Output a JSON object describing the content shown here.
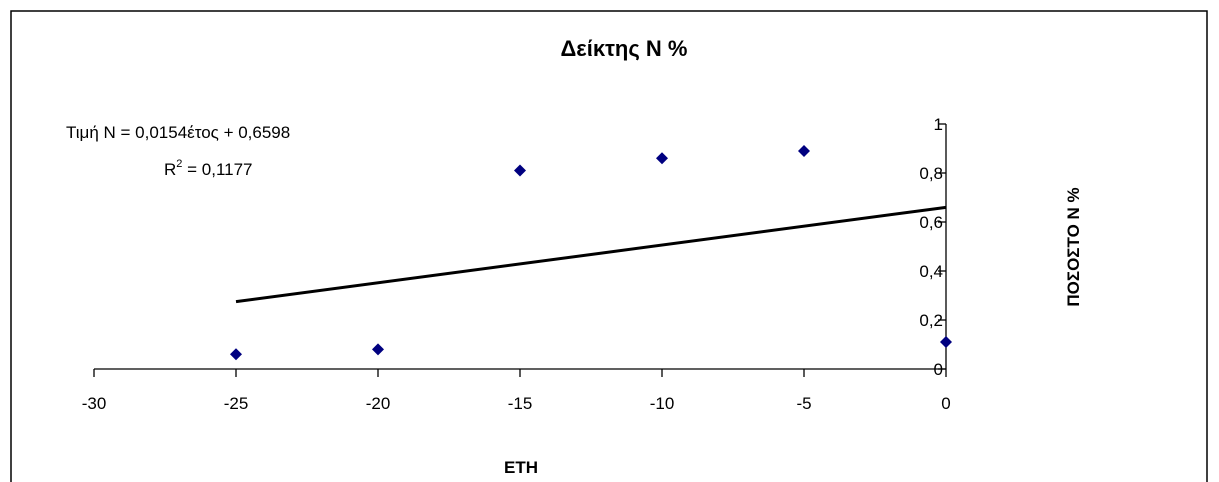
{
  "chart_data": {
    "type": "scatter",
    "title": "Δείκτης N %",
    "xlabel": "ΕΤΗ",
    "ylabel": "ΠΟΣΟΣΤΟ N %",
    "xlim": [
      -30,
      0
    ],
    "ylim": [
      0,
      1
    ],
    "x_ticks": [
      -30,
      -25,
      -20,
      -15,
      -10,
      -5,
      0
    ],
    "x_tick_labels": [
      "-30",
      "-25",
      "-20",
      "-15",
      "-10",
      "-5",
      "0"
    ],
    "y_ticks": [
      0,
      0.2,
      0.4,
      0.6,
      0.8,
      1
    ],
    "y_tick_labels": [
      "0",
      "0,2",
      "0,4",
      "0,6",
      "0,8",
      "1"
    ],
    "grid": false,
    "legend": "none",
    "series": [
      {
        "marker": "diamond",
        "color": "#000080",
        "x": [
          -25,
          -20,
          -15,
          -10,
          -5,
          0
        ],
        "y": [
          0.06,
          0.08,
          0.81,
          0.86,
          0.89,
          0.11
        ]
      }
    ],
    "trendline": {
      "type": "linear",
      "slope": 0.0154,
      "intercept": 0.6598,
      "x_range": [
        -25,
        0
      ],
      "color": "#000000",
      "equation_label": "Τιμή N = 0,0154έτος + 0,6598",
      "r2_label_prefix": "R",
      "r2_label_sup": "2",
      "r2_label_suffix": " = 0,1177"
    }
  }
}
